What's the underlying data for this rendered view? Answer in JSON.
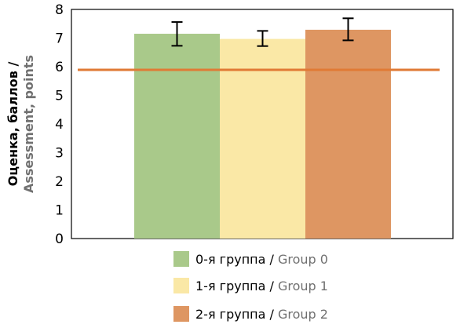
{
  "chart_data": {
    "type": "bar",
    "categories": [
      "0-я группа / Group 0",
      "1-я группа / Group 1",
      "2-я группа / Group 2"
    ],
    "series": [
      {
        "name_ru": "0-я группа / ",
        "name_en": "Group 0",
        "value": 7.15,
        "error_low": 6.73,
        "error_high": 7.56,
        "color": "#a9c98a"
      },
      {
        "name_ru": "1-я группа / ",
        "name_en": "Group 1",
        "value": 6.97,
        "error_low": 6.72,
        "error_high": 7.25,
        "color": "#fae8a6"
      },
      {
        "name_ru": "2-я группа / ",
        "name_en": "Group 2",
        "value": 7.29,
        "error_low": 6.92,
        "error_high": 7.69,
        "color": "#de9662"
      }
    ],
    "reference_line": {
      "value": 5.89,
      "color": "#e07a35"
    },
    "ylabel_ru": "Оценка, баллов /",
    "ylabel_en": "Assessment, points",
    "xlabel": "",
    "ylim": [
      0,
      8
    ],
    "yticks": [
      "0",
      "1",
      "2",
      "3",
      "4",
      "5",
      "6",
      "7",
      "8"
    ],
    "legend_position": "bottom",
    "grid": false
  }
}
